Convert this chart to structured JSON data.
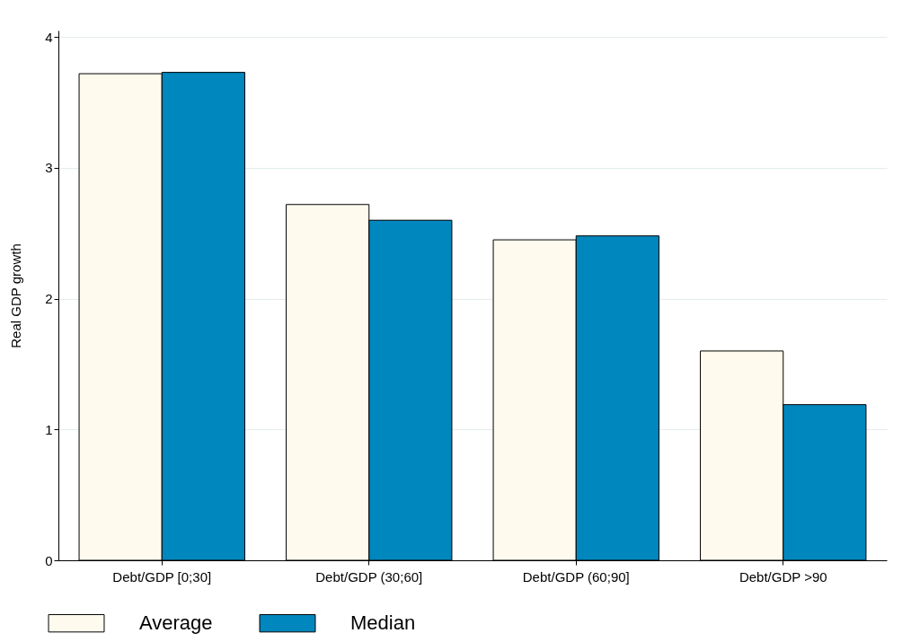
{
  "chart_data": {
    "type": "bar",
    "ylabel": "Real GDP growth",
    "categories": [
      "Debt/GDP [0;30]",
      "Debt/GDP (30;60]",
      "Debt/GDP (60;90]",
      "Debt/GDP >90"
    ],
    "series": [
      {
        "name": "Average",
        "color": "#fffaee",
        "values": [
          3.72,
          2.72,
          2.45,
          1.6
        ]
      },
      {
        "name": "Median",
        "color": "#0087bd",
        "values": [
          3.73,
          2.6,
          2.48,
          1.19
        ]
      }
    ],
    "ylim": [
      0,
      4.05
    ],
    "yticks": [
      0,
      1,
      2,
      3,
      4
    ],
    "grid": "y",
    "legend": "bottom"
  }
}
